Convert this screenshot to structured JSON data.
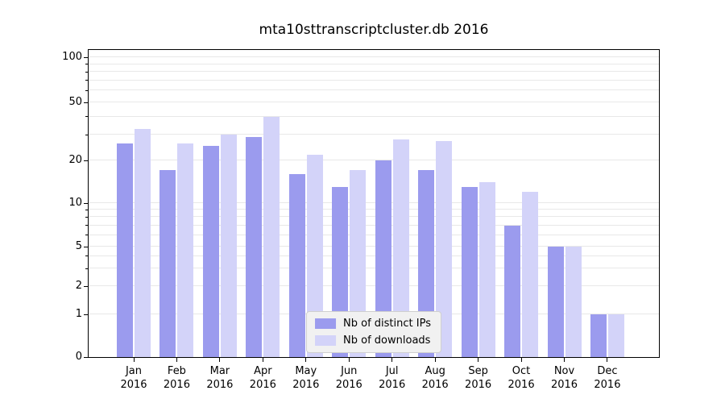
{
  "chart_data": {
    "type": "bar",
    "title": "mta10sttranscriptcluster.db 2016",
    "categories": [
      "Jan",
      "Feb",
      "Mar",
      "Apr",
      "May",
      "Jun",
      "Jul",
      "Aug",
      "Sep",
      "Oct",
      "Nov",
      "Dec"
    ],
    "year_label": "2016",
    "series": [
      {
        "name": "Nb of distinct IPs",
        "color": "#9b9bee",
        "values": [
          26,
          17,
          25,
          29,
          16,
          13,
          20,
          17,
          13,
          7,
          5,
          1
        ]
      },
      {
        "name": "Nb of downloads",
        "color": "#d3d3f9",
        "values": [
          33,
          26,
          30,
          40,
          22,
          17,
          28,
          27,
          14,
          12,
          5,
          1
        ]
      }
    ],
    "yticks": [
      0,
      1,
      2,
      5,
      10,
      20,
      50,
      100
    ],
    "grid_values": [
      1,
      2,
      3,
      4,
      5,
      6,
      7,
      8,
      9,
      10,
      20,
      30,
      40,
      50,
      60,
      70,
      80,
      90,
      100
    ],
    "ylim": [
      0,
      100
    ],
    "yscale": "symlog",
    "grid": true,
    "legend_position": "lower center"
  }
}
